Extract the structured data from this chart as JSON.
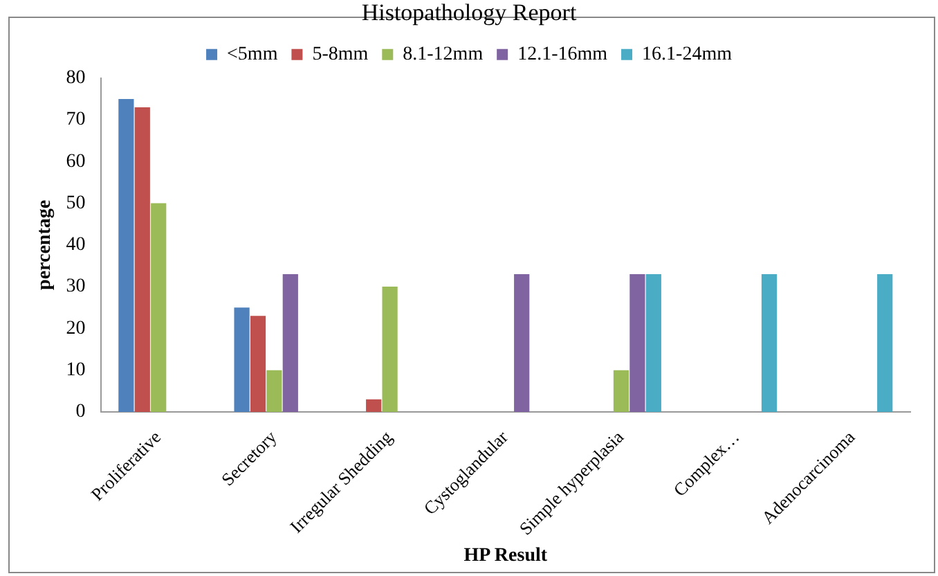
{
  "chart_data": {
    "type": "bar",
    "title": "Histopathology Report",
    "xlabel": "HP Result",
    "ylabel": "percentage",
    "categories": [
      "Proliferative",
      "Secretory",
      "Irregular Shedding",
      "Cystoglandular",
      "Simple hyperplasia",
      "Complex…",
      "Adenocarcinoma"
    ],
    "series": [
      {
        "name": "<5mm",
        "color": "#4f81bd",
        "values": [
          75,
          25,
          0,
          0,
          0,
          0,
          0
        ]
      },
      {
        "name": "5-8mm",
        "color": "#c0504d",
        "values": [
          73,
          23,
          3,
          0,
          0,
          0,
          0
        ]
      },
      {
        "name": "8.1-12mm",
        "color": "#9bbb59",
        "values": [
          50,
          10,
          30,
          0,
          10,
          0,
          0
        ]
      },
      {
        "name": "12.1-16mm",
        "color": "#8064a2",
        "values": [
          0,
          33,
          0,
          33,
          33,
          0,
          0
        ]
      },
      {
        "name": "16.1-24mm",
        "color": "#4bacc6",
        "values": [
          0,
          0,
          0,
          0,
          33,
          33,
          33
        ]
      }
    ],
    "ylim": [
      0,
      80
    ],
    "yticks": [
      0,
      10,
      20,
      30,
      40,
      50,
      60,
      70,
      80
    ],
    "grid": false,
    "legend": "top"
  }
}
